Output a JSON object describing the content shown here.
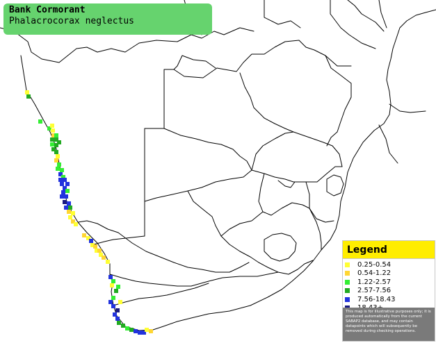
{
  "title": {
    "common_name": "Bank Cormorant",
    "scientific_name": "Phalacrocorax neglectus"
  },
  "legend": {
    "heading": "Legend",
    "items": [
      {
        "label": "0.25-0.54",
        "color": "#ffff33"
      },
      {
        "label": "0.54-1.22",
        "color": "#ffd633"
      },
      {
        "label": "1.22-2.57",
        "color": "#33ee33"
      },
      {
        "label": "2.57-7.56",
        "color": "#22aa22"
      },
      {
        "label": "7.56-18.43",
        "color": "#2233dd"
      },
      {
        "label": "18.43+",
        "color": "#1a1a80"
      }
    ],
    "note": "This map is for illustrative purposes only; it is produced automatically from the current SABAP2 database, and may contain datapoints which will subsequently be removed during checking operations."
  },
  "colors": {
    "title_box": "#66d36e",
    "legend_heading_bg": "#ffed00",
    "note_bg": "#7a7a7a",
    "border_lines": "#000000"
  }
}
